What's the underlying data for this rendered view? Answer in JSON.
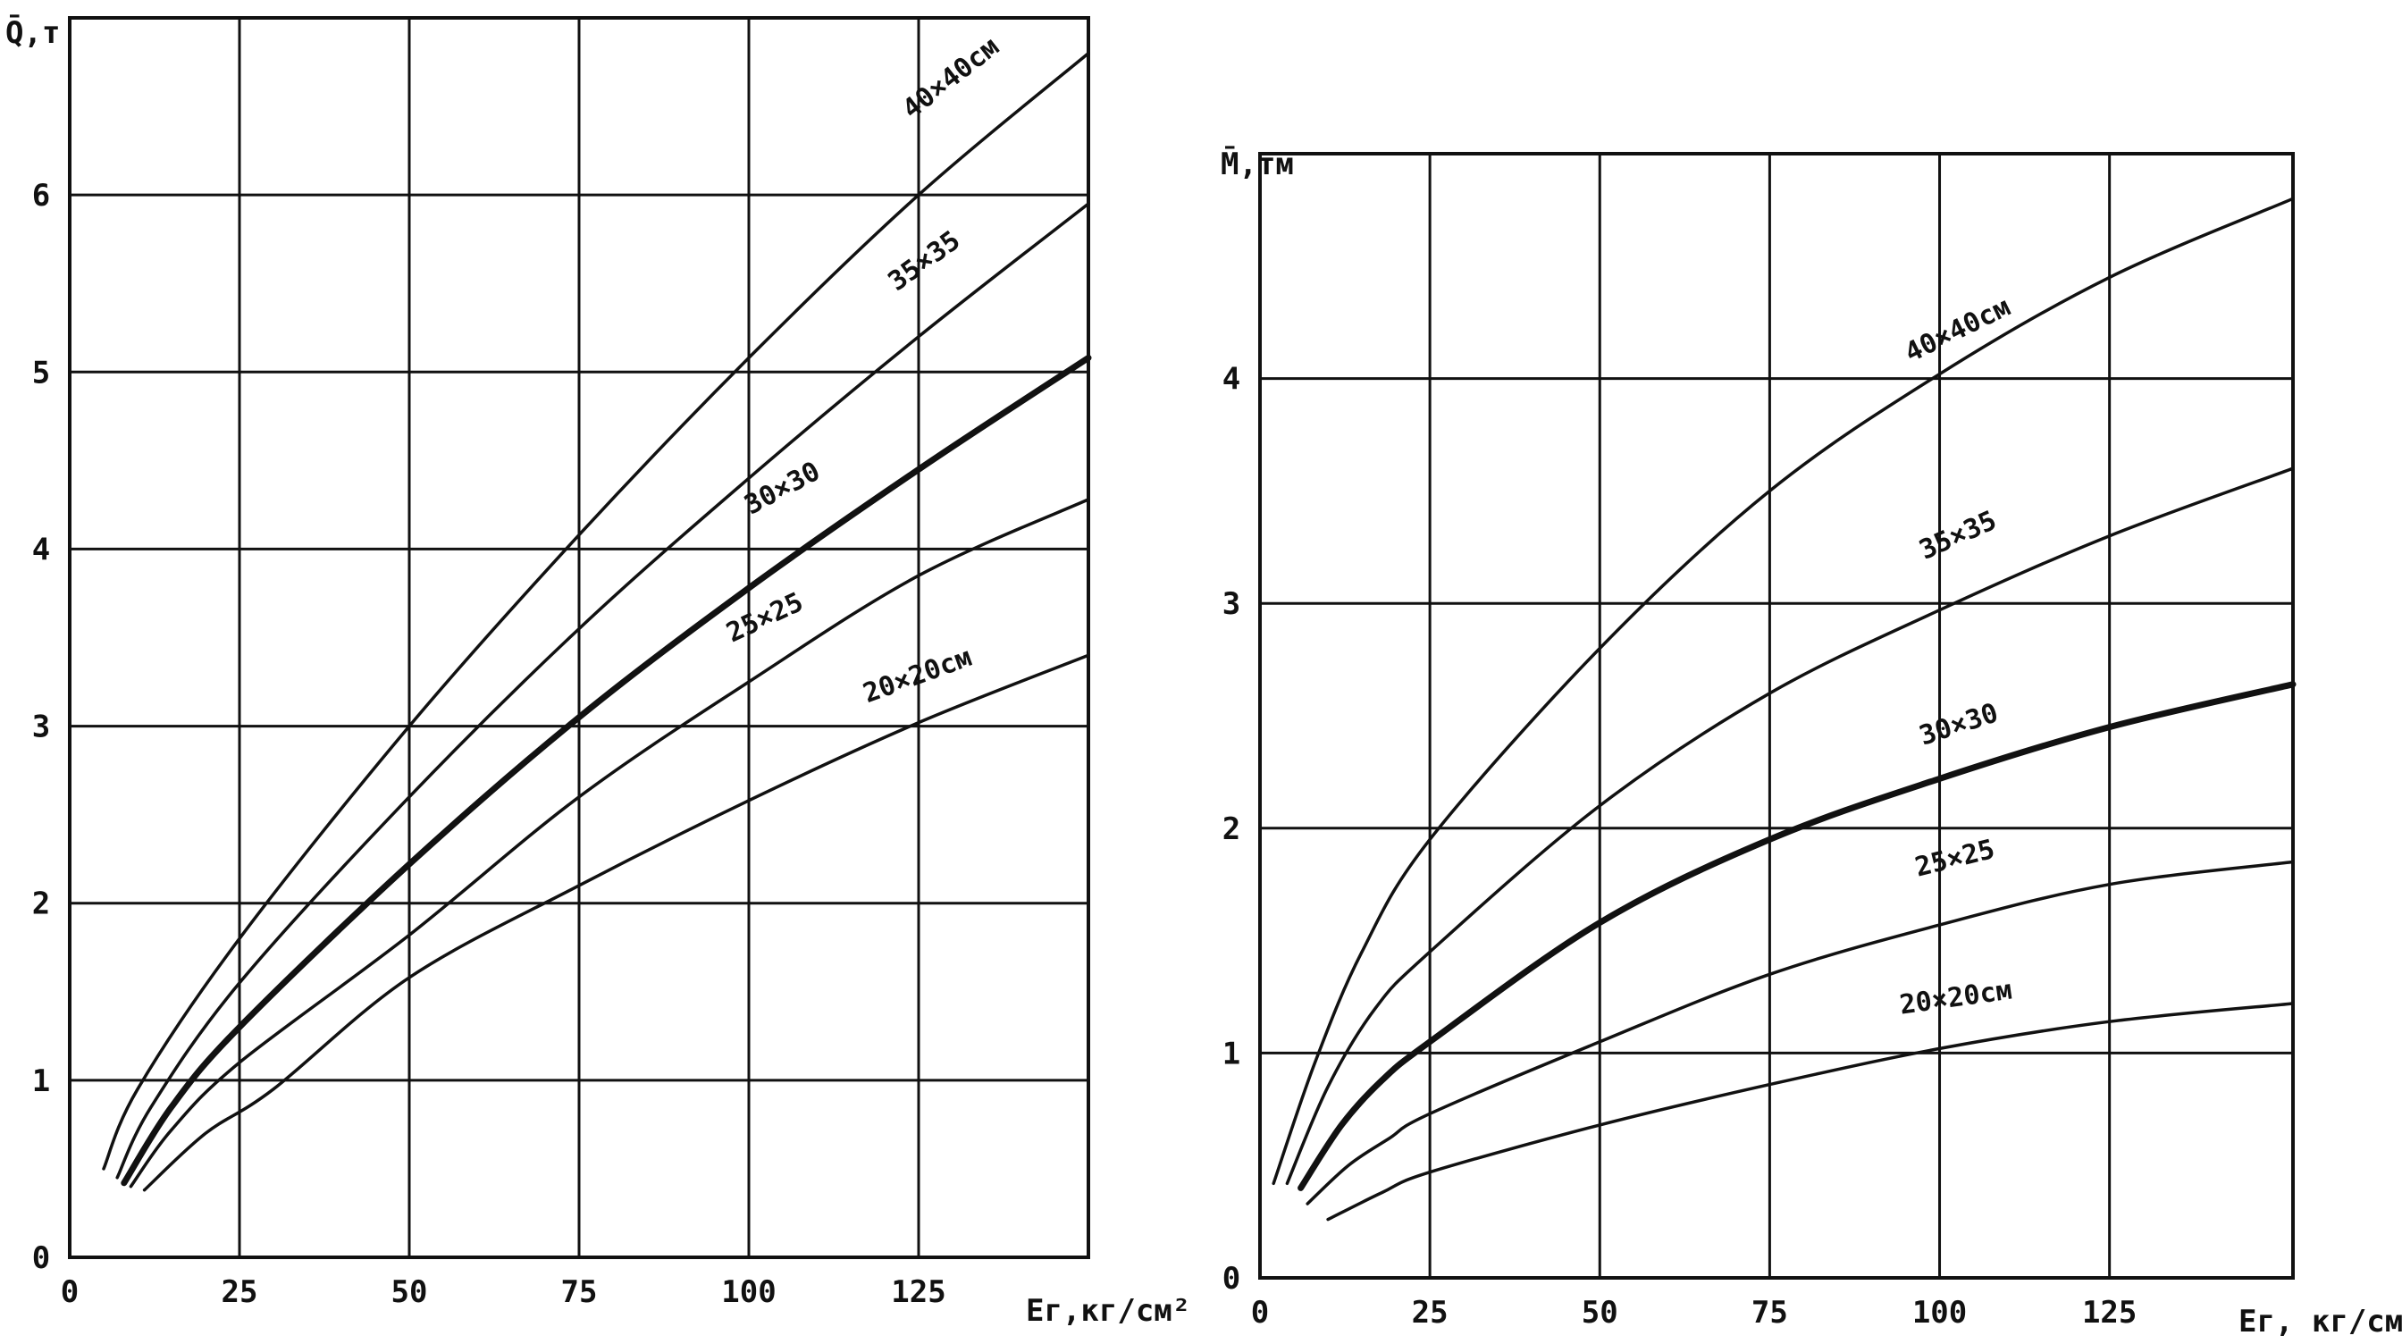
{
  "chart_data": [
    {
      "type": "line",
      "ylabel": "Q̄,т",
      "xlabel": "Eг,кг/см²",
      "xlim": [
        0,
        150
      ],
      "ylim": [
        0,
        7
      ],
      "x_ticks": [
        0,
        25,
        50,
        75,
        100,
        125
      ],
      "x_tick_labels": [
        "0",
        "25",
        "50",
        "75",
        "100",
        "125"
      ],
      "y_ticks": [
        0,
        1,
        2,
        3,
        4,
        5,
        6
      ],
      "y_tick_labels": [
        "0",
        "1",
        "2",
        "3",
        "4",
        "5",
        "6"
      ],
      "grid": true,
      "series": [
        {
          "name": "40×40см",
          "bold": false,
          "x": [
            5,
            10,
            25,
            50,
            75,
            100,
            125,
            150
          ],
          "y": [
            0.5,
            0.95,
            1.8,
            3.0,
            4.08,
            5.08,
            6.0,
            6.8
          ]
        },
        {
          "name": "35×35",
          "bold": false,
          "x": [
            7,
            12,
            25,
            50,
            75,
            100,
            125,
            150
          ],
          "y": [
            0.45,
            0.85,
            1.55,
            2.6,
            3.55,
            4.4,
            5.2,
            5.95
          ]
        },
        {
          "name": "30×30",
          "bold": true,
          "x": [
            8,
            15,
            25,
            50,
            75,
            100,
            125,
            150
          ],
          "y": [
            0.42,
            0.85,
            1.3,
            2.22,
            3.05,
            3.78,
            4.45,
            5.08
          ]
        },
        {
          "name": "25×25",
          "bold": false,
          "x": [
            9,
            15,
            25,
            50,
            75,
            100,
            125,
            150
          ],
          "y": [
            0.4,
            0.72,
            1.1,
            1.82,
            2.6,
            3.25,
            3.85,
            4.28
          ]
        },
        {
          "name": "20×20см",
          "bold": false,
          "x": [
            11,
            20,
            30,
            50,
            75,
            100,
            125,
            150
          ],
          "y": [
            0.38,
            0.7,
            0.95,
            1.58,
            2.1,
            2.58,
            3.02,
            3.4
          ]
        }
      ]
    },
    {
      "type": "line",
      "ylabel": "M̄,тм",
      "xlabel": "Eг, кг/см²",
      "xlim": [
        0,
        152
      ],
      "ylim": [
        0,
        5
      ],
      "x_ticks": [
        0,
        25,
        50,
        75,
        100,
        125
      ],
      "x_tick_labels": [
        "0",
        "25",
        "50",
        "75",
        "100",
        "125"
      ],
      "y_ticks": [
        0,
        1,
        2,
        3,
        4
      ],
      "y_tick_labels": [
        "0",
        "1",
        "2",
        "3",
        "4"
      ],
      "grid": true,
      "series": [
        {
          "name": "40×40см",
          "bold": false,
          "x": [
            2,
            8,
            15,
            25,
            50,
            75,
            100,
            125,
            152
          ],
          "y": [
            0.42,
            0.95,
            1.45,
            1.95,
            2.8,
            3.5,
            4.02,
            4.45,
            4.8
          ]
        },
        {
          "name": "35×35",
          "bold": false,
          "x": [
            4,
            10,
            17,
            25,
            50,
            75,
            100,
            125,
            152
          ],
          "y": [
            0.42,
            0.85,
            1.2,
            1.45,
            2.1,
            2.6,
            2.97,
            3.3,
            3.6
          ]
        },
        {
          "name": "30×30",
          "bold": true,
          "x": [
            6,
            12,
            18,
            25,
            50,
            75,
            100,
            125,
            152
          ],
          "y": [
            0.4,
            0.68,
            0.88,
            1.05,
            1.58,
            1.95,
            2.22,
            2.45,
            2.64
          ]
        },
        {
          "name": "25×25",
          "bold": false,
          "x": [
            7,
            13,
            19,
            25,
            50,
            75,
            100,
            125,
            152
          ],
          "y": [
            0.33,
            0.5,
            0.62,
            0.73,
            1.05,
            1.35,
            1.57,
            1.75,
            1.85
          ]
        },
        {
          "name": "20×20см",
          "bold": false,
          "x": [
            10,
            18,
            25,
            50,
            75,
            100,
            125,
            152
          ],
          "y": [
            0.26,
            0.38,
            0.47,
            0.68,
            0.86,
            1.02,
            1.14,
            1.22
          ]
        }
      ]
    }
  ]
}
